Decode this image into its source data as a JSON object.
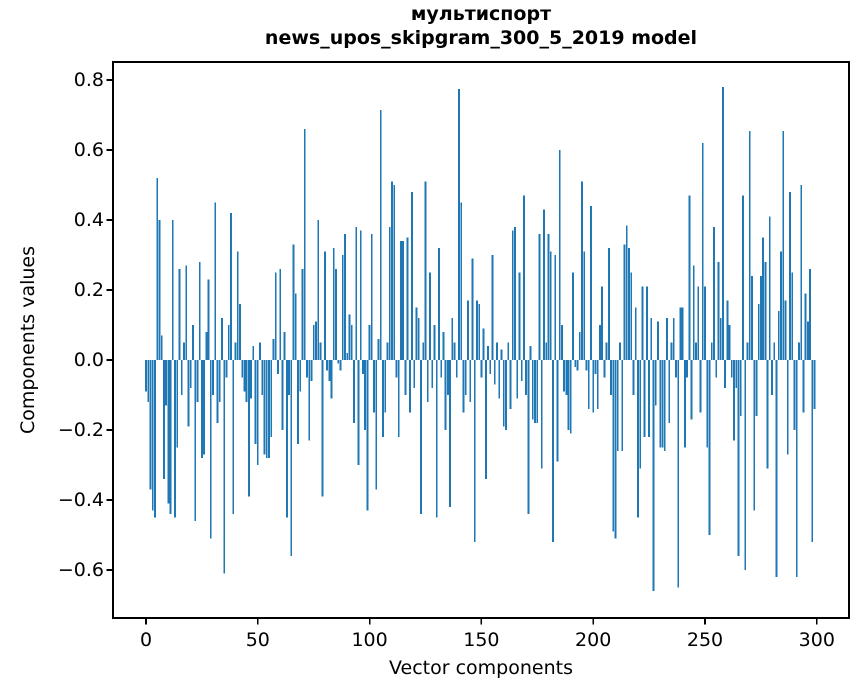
{
  "chart_data": {
    "type": "bar",
    "title_line1": "мультиспорт",
    "title_line2": "news_upos_skipgram_300_5_2019 model",
    "xlabel": "Vector components",
    "ylabel": "Components values",
    "bar_color": "#1f77b4",
    "axis_color": "#000000",
    "background_color": "#ffffff",
    "grid": "off",
    "legend": "none",
    "n_components": 300,
    "xlim": [
      -15,
      314
    ],
    "ylim": [
      -0.737,
      0.852
    ],
    "x_ticks": [
      {
        "label": "0",
        "value": 0
      },
      {
        "label": "50",
        "value": 50
      },
      {
        "label": "100",
        "value": 100
      },
      {
        "label": "150",
        "value": 150
      },
      {
        "label": "200",
        "value": 200
      },
      {
        "label": "250",
        "value": 250
      },
      {
        "label": "300",
        "value": 300
      }
    ],
    "y_ticks": [
      {
        "label": "0.8",
        "value": 0.8
      },
      {
        "label": "0.6",
        "value": 0.6
      },
      {
        "label": "0.4",
        "value": 0.4
      },
      {
        "label": "0.2",
        "value": 0.2
      },
      {
        "label": "0.0",
        "value": 0.0
      },
      {
        "label": "−0.2",
        "value": -0.2
      },
      {
        "label": "−0.4",
        "value": -0.4
      },
      {
        "label": "−0.6",
        "value": -0.6
      }
    ],
    "values": [
      -0.09,
      -0.12,
      -0.37,
      -0.43,
      -0.45,
      0.52,
      0.4,
      0.07,
      -0.34,
      -0.13,
      -0.41,
      -0.44,
      0.4,
      -0.45,
      -0.25,
      0.26,
      -0.1,
      0.05,
      0.27,
      -0.19,
      -0.08,
      0.1,
      -0.46,
      -0.12,
      0.28,
      -0.28,
      -0.27,
      0.08,
      0.23,
      -0.51,
      -0.1,
      0.45,
      -0.18,
      -0.12,
      0.12,
      -0.61,
      -0.05,
      0.1,
      0.42,
      -0.44,
      0.05,
      0.31,
      0.16,
      -0.05,
      -0.09,
      -0.12,
      -0.39,
      -0.11,
      0.04,
      -0.24,
      -0.3,
      0.05,
      -0.1,
      -0.27,
      -0.28,
      -0.28,
      -0.22,
      0.06,
      0.25,
      -0.04,
      0.26,
      -0.2,
      0.08,
      -0.45,
      -0.1,
      -0.56,
      0.33,
      0.19,
      -0.24,
      -0.09,
      0.26,
      0.66,
      -0.05,
      -0.23,
      -0.06,
      0.1,
      0.11,
      0.4,
      0.05,
      -0.39,
      0.31,
      -0.03,
      -0.06,
      -0.11,
      0.32,
      0.26,
      -0.01,
      -0.03,
      0.3,
      0.36,
      0.02,
      0.13,
      0.1,
      -0.18,
      0.38,
      -0.3,
      0.37,
      -0.04,
      -0.2,
      -0.43,
      0.1,
      0.36,
      -0.15,
      -0.37,
      0.06,
      0.715,
      -0.22,
      -0.15,
      0.05,
      0.38,
      0.51,
      0.5,
      -0.05,
      -0.22,
      0.34,
      0.34,
      -0.1,
      0.35,
      -0.15,
      0.48,
      -0.08,
      0.15,
      0.12,
      -0.44,
      0.05,
      0.51,
      -0.12,
      0.25,
      -0.08,
      0.1,
      -0.45,
      0.32,
      -0.05,
      0.08,
      -0.2,
      -0.1,
      -0.42,
      0.12,
      0.05,
      -0.05,
      0.775,
      0.45,
      -0.15,
      -0.1,
      0.17,
      -0.12,
      0.29,
      -0.52,
      0.17,
      0.16,
      -0.05,
      0.09,
      -0.34,
      0.04,
      -0.04,
      0.3,
      -0.07,
      0.05,
      -0.11,
      0.03,
      -0.19,
      -0.2,
      0.05,
      -0.14,
      0.37,
      0.38,
      -0.11,
      0.25,
      -0.06,
      0.47,
      -0.1,
      -0.44,
      0.04,
      -0.17,
      -0.18,
      -0.18,
      0.36,
      -0.31,
      0.43,
      0.05,
      0.36,
      0.31,
      -0.52,
      0.3,
      -0.29,
      0.6,
      0.1,
      -0.09,
      -0.1,
      -0.2,
      -0.21,
      0.25,
      -0.02,
      -0.03,
      0.08,
      0.51,
      0.31,
      -0.03,
      -0.14,
      0.44,
      -0.15,
      -0.04,
      -0.14,
      0.1,
      0.21,
      -0.05,
      0.05,
      0.32,
      -0.1,
      -0.49,
      -0.51,
      -0.26,
      0.05,
      -0.26,
      0.33,
      0.385,
      0.32,
      0.25,
      -0.1,
      0.15,
      -0.45,
      -0.31,
      0.21,
      -0.22,
      0.21,
      -0.22,
      0.12,
      -0.66,
      -0.13,
      0.11,
      -0.25,
      -0.25,
      -0.26,
      0.12,
      -0.18,
      0.05,
      0.12,
      -0.05,
      -0.65,
      0.15,
      0.15,
      -0.25,
      -0.05,
      0.47,
      -0.17,
      0.27,
      0.05,
      0.21,
      -0.15,
      0.62,
      0.21,
      -0.25,
      -0.5,
      0.05,
      0.38,
      -0.05,
      0.28,
      0.12,
      0.78,
      -0.08,
      0.17,
      0.1,
      -0.05,
      -0.23,
      -0.08,
      -0.56,
      -0.16,
      0.47,
      -0.6,
      0.05,
      0.655,
      0.24,
      -0.43,
      -0.16,
      0.16,
      0.24,
      0.35,
      0.28,
      -0.31,
      0.41,
      -0.1,
      0.05,
      -0.62,
      0.14,
      0.31,
      0.655,
      0.17,
      -0.27,
      0.48,
      0.25,
      -0.2,
      -0.62,
      0.05,
      0.5,
      -0.15,
      0.19,
      0.11,
      0.26,
      -0.52,
      -0.14
    ]
  }
}
